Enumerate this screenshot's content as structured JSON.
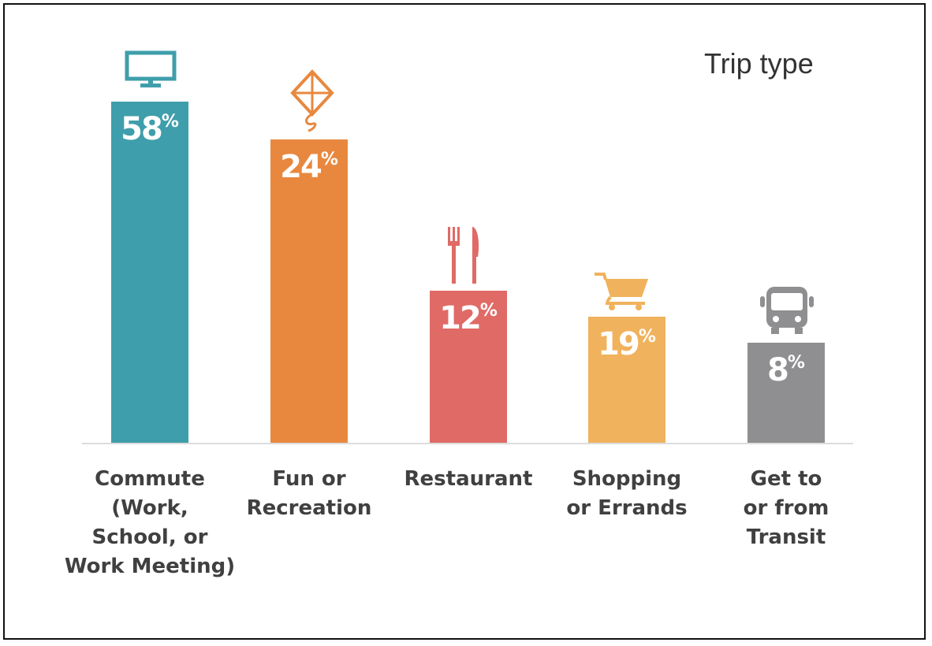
{
  "chart_data": {
    "type": "bar",
    "title": "Trip type",
    "categories": [
      "Commute\n(Work,\nSchool, or\nWork Meeting)",
      "Fun or\nRecreation",
      "Restaurant",
      "Shopping\nor Errands",
      "Get to\nor from\nTransit"
    ],
    "values": [
      58,
      24,
      12,
      19,
      8
    ],
    "value_labels": [
      "58",
      "24",
      "12",
      "19",
      "8"
    ],
    "value_suffix": "%",
    "colors": [
      "#3f9eab",
      "#e8883f",
      "#e06a66",
      "#f0b25c",
      "#8f8f91"
    ],
    "icons": [
      "monitor-icon",
      "kite-icon",
      "fork-knife-icon",
      "shopping-cart-icon",
      "bus-icon"
    ]
  }
}
